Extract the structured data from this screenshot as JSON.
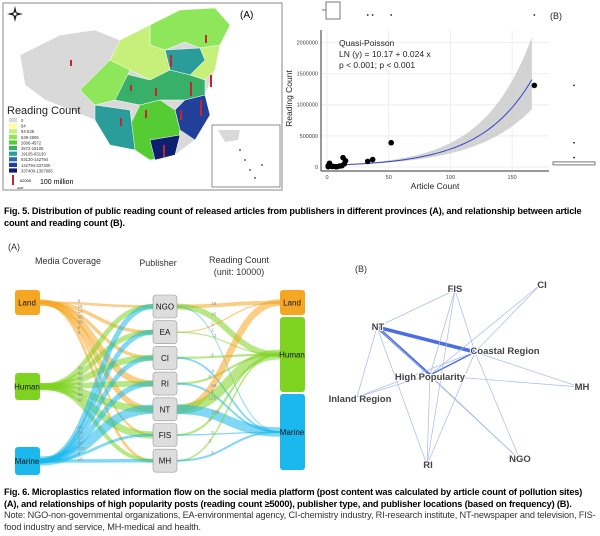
{
  "fig5": {
    "map": {
      "panel_label": "(A)",
      "legend_title": "Reading Count",
      "legend": [
        {
          "label": "0",
          "color": "#d9d9d9"
        },
        {
          "label": "94",
          "color": "#ffff99"
        },
        {
          "label": "94-539",
          "color": "#c6f07a"
        },
        {
          "label": "539-2606",
          "color": "#8ee65a"
        },
        {
          "label": "2606-4572",
          "color": "#55cc33"
        },
        {
          "label": "4572-19105",
          "color": "#39b06a"
        },
        {
          "label": "19105-93130",
          "color": "#2a9d9a"
        },
        {
          "label": "93130-142794",
          "color": "#2a6fb0"
        },
        {
          "label": "142794-337400",
          "color": "#223f99"
        },
        {
          "label": "337400-1307965",
          "color": "#0d1f70"
        }
      ],
      "gdp_value": "62000",
      "gdp_unit": "100 million",
      "gdp_label": "GDP"
    },
    "chart_data": {
      "type": "scatter",
      "panel_label": "(B)",
      "xlabel": "Article Count",
      "ylabel": "Reading Count",
      "xlim": [
        0,
        175
      ],
      "ylim": [
        0,
        2200000
      ],
      "xticks": [
        0,
        50,
        100,
        150
      ],
      "yticks": [
        0,
        500000,
        1000000,
        1500000,
        2000000
      ],
      "ytick_labels": [
        "0",
        "500000",
        "1000000",
        "1500000",
        "2000000"
      ],
      "annotation": [
        "Quasi-Poisson",
        "LN (y) = 10.17 + 0.024 x",
        "p < 0.001; p < 0.001"
      ],
      "fit": {
        "intercept": 10.17,
        "slope": 0.024
      },
      "points": [
        [
          1,
          5000
        ],
        [
          1,
          20000
        ],
        [
          2,
          60000
        ],
        [
          3,
          20000
        ],
        [
          4,
          8000
        ],
        [
          5,
          10000
        ],
        [
          7,
          5000
        ],
        [
          8,
          5000
        ],
        [
          10,
          15000
        ],
        [
          12,
          20000
        ],
        [
          13,
          150000
        ],
        [
          14,
          50000
        ],
        [
          15,
          100000
        ],
        [
          33,
          90000
        ],
        [
          37,
          120000
        ],
        [
          52,
          390000
        ],
        [
          168,
          1310000
        ]
      ],
      "grid": true
    },
    "caption": "Fig. 5. Distribution of public reading count of released articles from publishers in different provinces (A), and relationship between article count and reading count (B)."
  },
  "fig6": {
    "sankey": {
      "panel_label": "(A)",
      "col_headers": [
        "Media Coverage",
        "Publisher",
        "Reading Count",
        "(unit: 10000)"
      ],
      "left_nodes": [
        {
          "label": "Land",
          "color": "#f5a623"
        },
        {
          "label": "Human",
          "color": "#7ed321"
        },
        {
          "label": "Marine",
          "color": "#1ab8ec"
        }
      ],
      "publishers": [
        "NGO",
        "EA",
        "CI",
        "RI",
        "NT",
        "FIS",
        "MH"
      ],
      "right_nodes": [
        {
          "label": "Land",
          "color": "#f5a623"
        },
        {
          "label": "Human",
          "color": "#7ed321"
        },
        {
          "label": "Marine",
          "color": "#1ab8ec"
        }
      ],
      "links_left": [
        [
          0,
          0,
          8
        ],
        [
          0,
          1,
          15
        ],
        [
          0,
          2,
          14
        ],
        [
          0,
          3,
          55
        ],
        [
          0,
          4,
          38
        ],
        [
          0,
          5,
          6
        ],
        [
          0,
          6,
          9
        ],
        [
          1,
          0,
          30
        ],
        [
          1,
          1,
          32
        ],
        [
          1,
          2,
          50
        ],
        [
          1,
          3,
          41
        ],
        [
          1,
          4,
          65
        ],
        [
          1,
          5,
          65
        ],
        [
          1,
          6,
          22
        ],
        [
          2,
          0,
          33
        ],
        [
          2,
          1,
          29
        ],
        [
          2,
          2,
          27
        ],
        [
          2,
          3,
          36
        ],
        [
          2,
          4,
          107
        ],
        [
          2,
          5,
          9
        ],
        [
          2,
          6,
          15
        ]
      ],
      "links_right": [
        [
          0,
          0,
          18
        ],
        [
          0,
          1,
          42
        ],
        [
          0,
          2,
          1
        ],
        [
          1,
          0,
          2
        ],
        [
          1,
          1,
          2
        ],
        [
          2,
          1,
          6
        ],
        [
          2,
          2,
          4
        ],
        [
          3,
          1,
          6
        ],
        [
          3,
          2,
          5
        ],
        [
          4,
          0,
          56
        ],
        [
          4,
          1,
          122
        ],
        [
          4,
          2,
          109
        ],
        [
          5,
          1,
          6
        ],
        [
          5,
          2,
          2
        ],
        [
          6,
          1,
          3
        ],
        [
          6,
          2,
          5
        ]
      ]
    },
    "network": {
      "panel_label": "(B)",
      "nodes": [
        "FIS",
        "CI",
        "NT",
        "Coastal Region",
        "MH",
        "High Popularity",
        "Inland Region",
        "RI",
        "NGO"
      ],
      "edges": [
        [
          2,
          3,
          5
        ],
        [
          2,
          5,
          4
        ],
        [
          2,
          0,
          1
        ],
        [
          2,
          7,
          1
        ],
        [
          2,
          8,
          1
        ],
        [
          2,
          6,
          1
        ],
        [
          3,
          0,
          1
        ],
        [
          3,
          1,
          1
        ],
        [
          3,
          4,
          1
        ],
        [
          3,
          8,
          1
        ],
        [
          3,
          7,
          1
        ],
        [
          5,
          6,
          1
        ],
        [
          5,
          3,
          2
        ],
        [
          5,
          0,
          1
        ],
        [
          5,
          1,
          1
        ],
        [
          5,
          7,
          1
        ],
        [
          5,
          8,
          1
        ],
        [
          5,
          4,
          1
        ],
        [
          6,
          3,
          1
        ],
        [
          0,
          7,
          1
        ]
      ]
    },
    "caption": "Fig. 6. Microplastics related information flow on the social media platform (post content was calculated by article count of pollution sites) (A), and relationships of high popularity posts (reading count ≥5000), publisher type, and publisher locations (based on frequency) (B).",
    "note": "Note: NGO-non-governmental organizations, EA-environmental agency, CI-chemistry industry, RI-research institute, NT-newspaper and television, FIS-food industry and service, MH-medical and health."
  }
}
